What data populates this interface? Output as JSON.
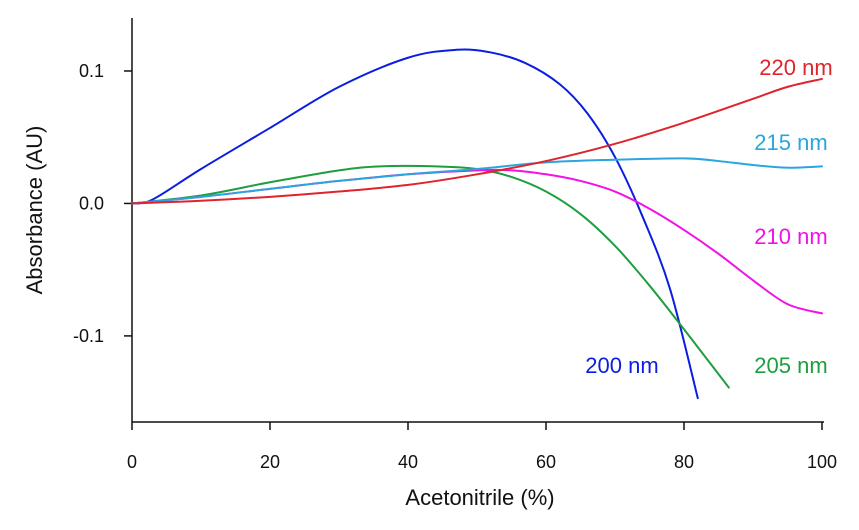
{
  "chart_data": {
    "type": "line",
    "title": "",
    "xlabel": "Acetonitrile (%)",
    "ylabel": "Absorbance (AU)",
    "xlim": [
      0,
      100
    ],
    "ylim": [
      -0.165,
      0.14
    ],
    "x_ticks": [
      0,
      20,
      40,
      60,
      80,
      100
    ],
    "x_tick_labels": [
      "0",
      "20",
      "40",
      "60",
      "80",
      "100"
    ],
    "y_ticks": [
      0.1,
      0.0,
      -0.1
    ],
    "y_tick_labels": [
      "0.1",
      "0.0",
      "-0.1"
    ],
    "grid": false,
    "legend": "inline labels at line ends",
    "series": [
      {
        "name": "200 nm",
        "label": "200 nm",
        "color": "#0a1ee0",
        "x": [
          0,
          3,
          10,
          20,
          30,
          40,
          47,
          52,
          57,
          62,
          66,
          70,
          74,
          78,
          82
        ],
        "y": [
          0,
          0.003,
          0.026,
          0.057,
          0.088,
          0.11,
          0.116,
          0.114,
          0.106,
          0.09,
          0.068,
          0.035,
          -0.01,
          -0.065,
          -0.147
        ]
      },
      {
        "name": "205 nm",
        "label": "205 nm",
        "color": "#1f9e3f",
        "x": [
          0,
          10,
          20,
          30,
          36,
          44,
          50,
          55,
          60,
          65,
          70,
          75,
          80,
          86.5
        ],
        "y": [
          0,
          0.006,
          0.016,
          0.025,
          0.028,
          0.028,
          0.026,
          0.02,
          0.009,
          -0.008,
          -0.032,
          -0.062,
          -0.095,
          -0.139
        ]
      },
      {
        "name": "210 nm",
        "label": "210 nm",
        "color": "#f012e6",
        "x": [
          0,
          10,
          20,
          30,
          40,
          50,
          55,
          60,
          65,
          70,
          75,
          80,
          85,
          90,
          95,
          100
        ],
        "y": [
          0,
          0.005,
          0.011,
          0.017,
          0.022,
          0.025,
          0.025,
          0.022,
          0.017,
          0.009,
          -0.004,
          -0.02,
          -0.038,
          -0.058,
          -0.076,
          -0.083
        ]
      },
      {
        "name": "215 nm",
        "label": "215 nm",
        "color": "#2aa6df",
        "x": [
          0,
          10,
          20,
          30,
          40,
          50,
          60,
          70,
          80,
          85,
          90,
          95,
          100
        ],
        "y": [
          0,
          0.005,
          0.011,
          0.017,
          0.022,
          0.026,
          0.031,
          0.033,
          0.034,
          0.032,
          0.029,
          0.027,
          0.028
        ]
      },
      {
        "name": "220 nm",
        "label": "220 nm",
        "color": "#e0242b",
        "x": [
          0,
          10,
          20,
          30,
          40,
          50,
          60,
          70,
          80,
          90,
          95,
          100
        ],
        "y": [
          0,
          0.002,
          0.005,
          0.009,
          0.014,
          0.022,
          0.032,
          0.045,
          0.061,
          0.079,
          0.088,
          0.094
        ]
      }
    ]
  }
}
